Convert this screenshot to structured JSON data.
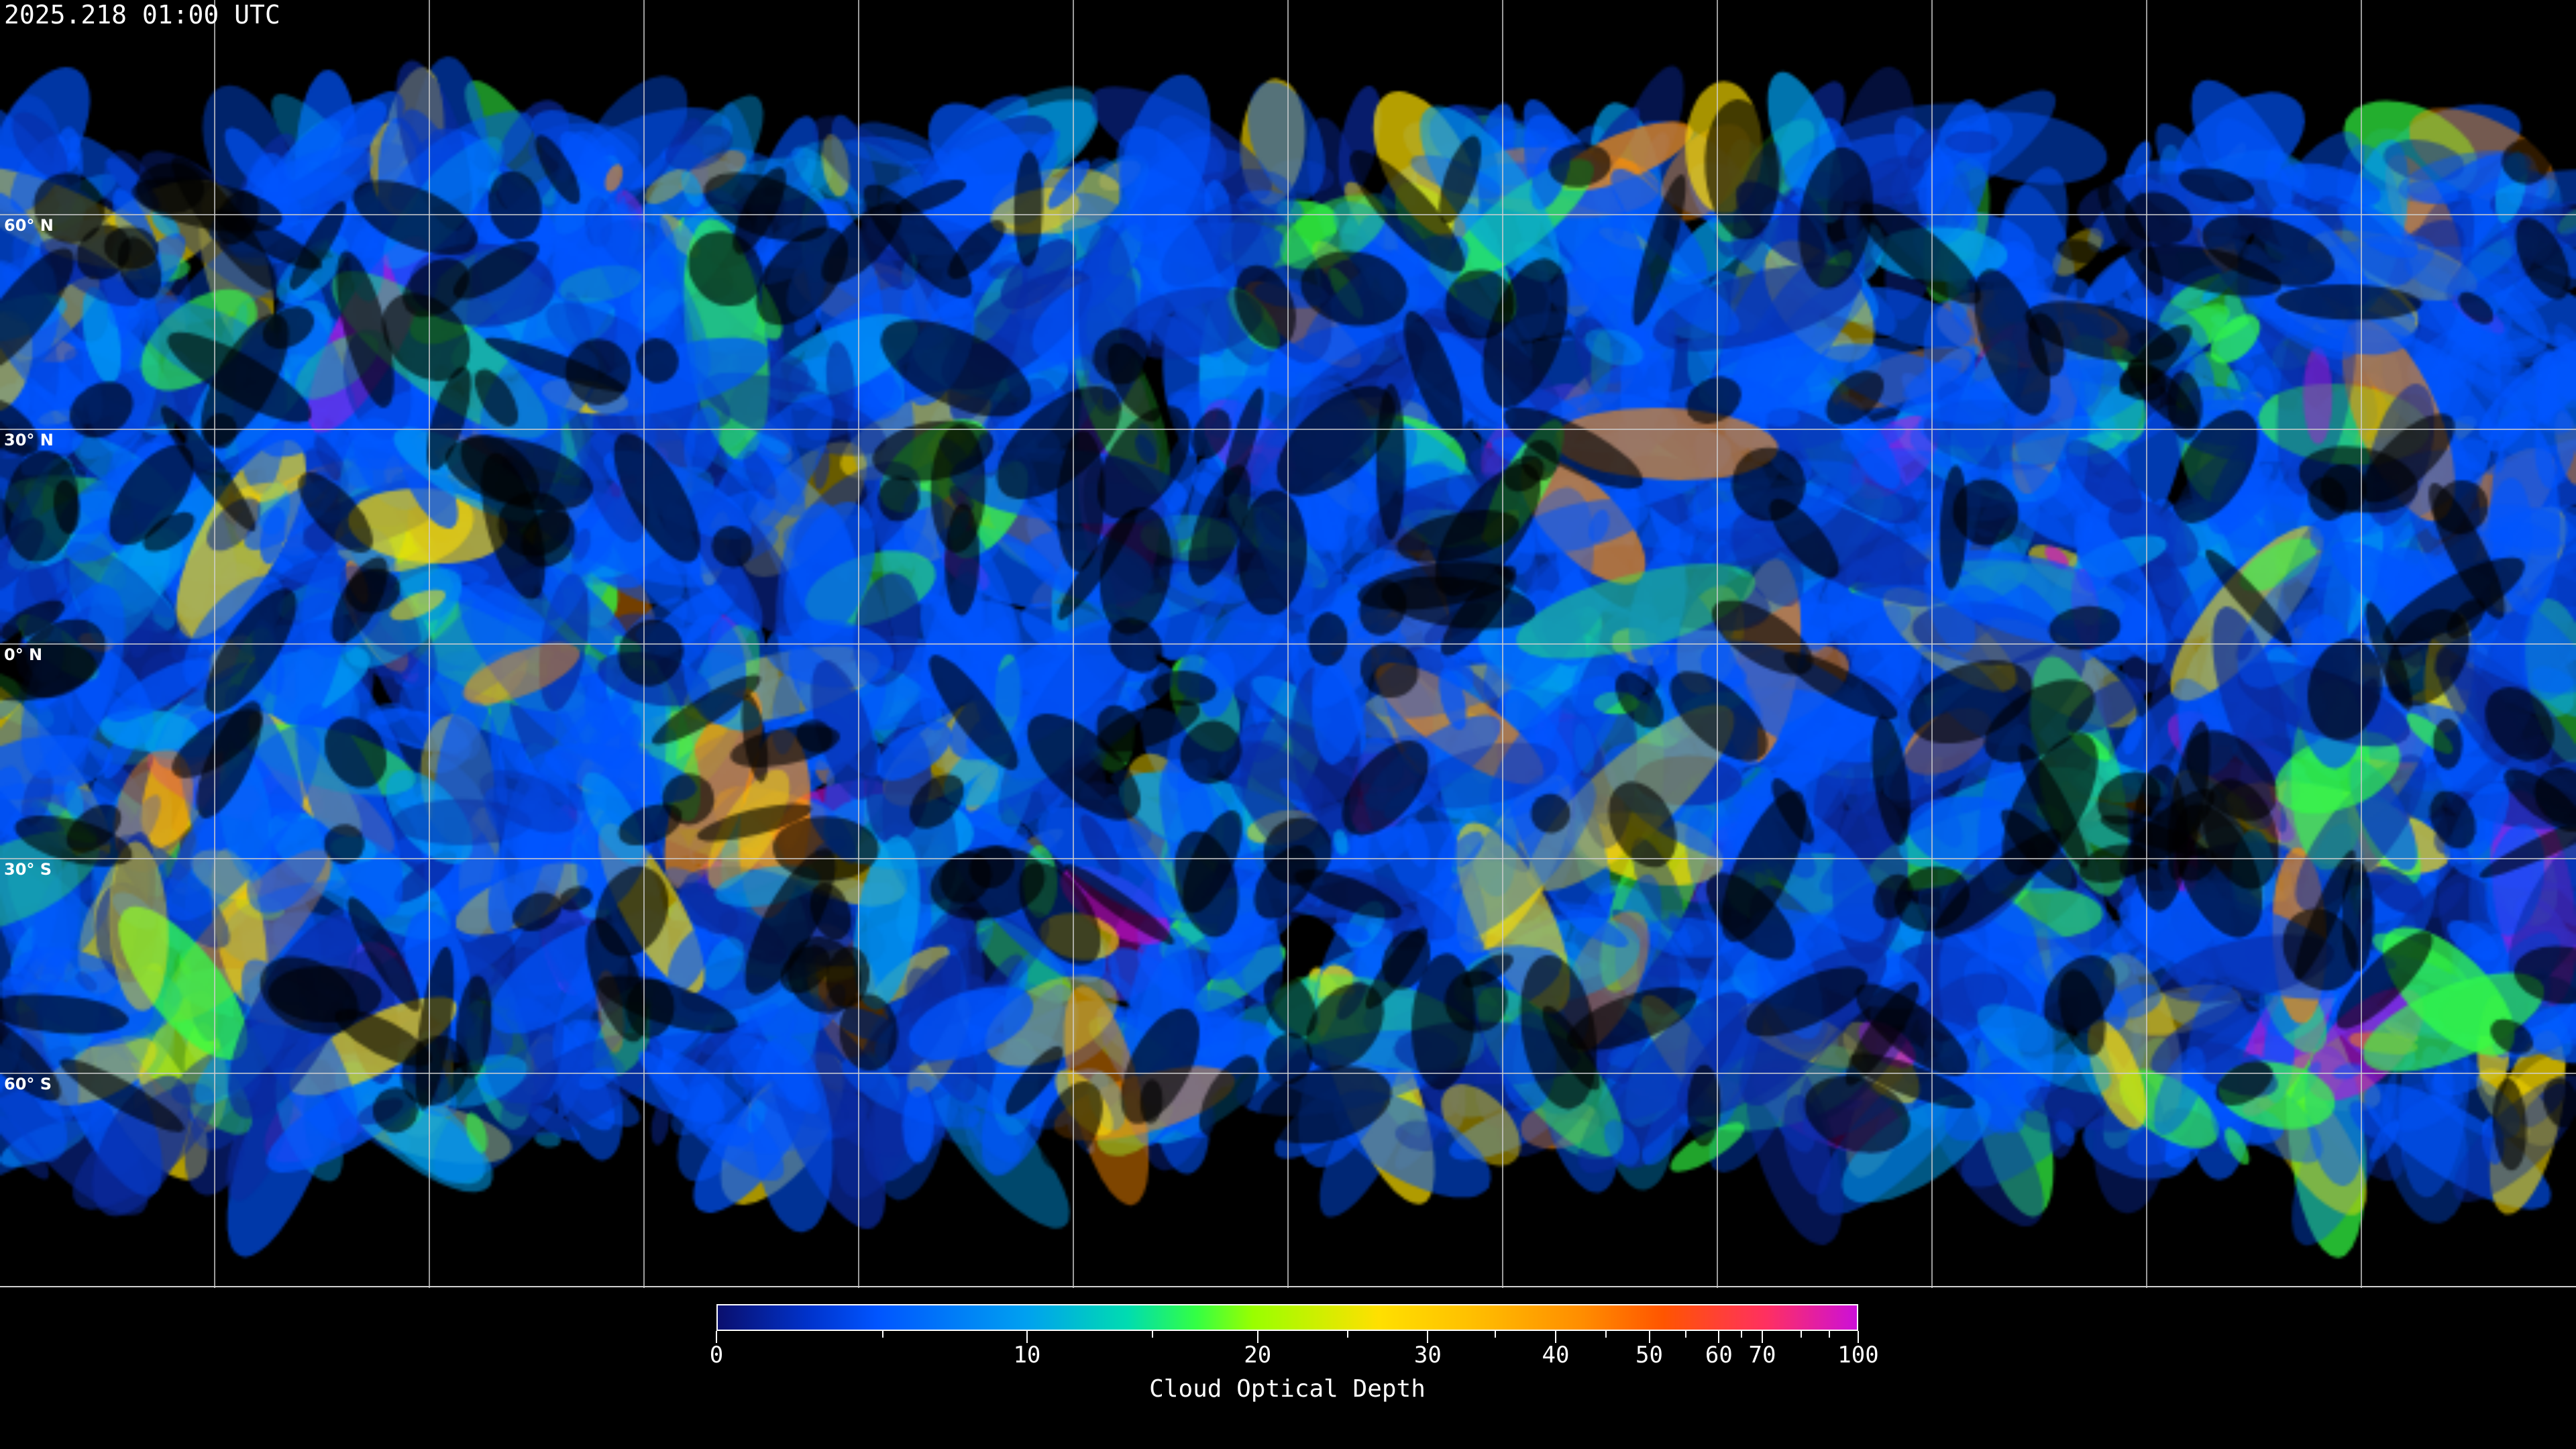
{
  "title": "2025.218 01:00 UTC",
  "lat_labels": [
    "60° N",
    "30° N",
    "0° N",
    "30° S",
    "60° S"
  ],
  "colorbar": {
    "title": "Cloud Optical Depth",
    "tick_labels": [
      "0",
      "10",
      "20",
      "30",
      "40",
      "50",
      "60",
      "70",
      "100"
    ],
    "major_ticks": [
      0,
      10,
      20,
      30,
      40,
      50,
      60,
      70,
      100
    ],
    "minor_ticks": [
      5,
      15,
      25,
      35,
      45,
      55,
      65,
      80,
      90
    ],
    "colors": [
      "#0a0f6e",
      "#0055ff",
      "#00a0f0",
      "#33ff44",
      "#ffe000",
      "#ff8c00",
      "#ff5500",
      "#cc10d8"
    ]
  },
  "map": {
    "projection": "equirectangular",
    "grid_spacing_deg": 30,
    "background": "#000000",
    "gridline_color": "#cfcfcf",
    "coastline_color": "#ffffff"
  }
}
